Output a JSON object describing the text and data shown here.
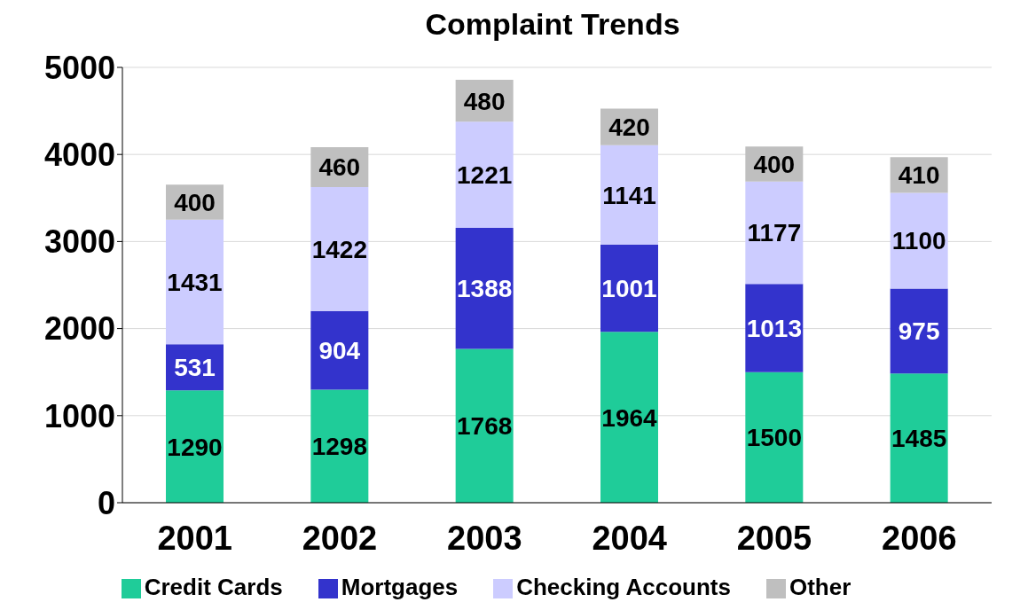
{
  "chart_data": {
    "type": "bar",
    "title": "Complaint Trends",
    "categories": [
      "2001",
      "2002",
      "2003",
      "2004",
      "2005",
      "2006"
    ],
    "series": [
      {
        "name": "Credit Cards",
        "color": "#1fcc99",
        "values": [
          1290,
          1298,
          1768,
          1964,
          1500,
          1485
        ]
      },
      {
        "name": "Mortgages",
        "color": "#3333cc",
        "values": [
          531,
          904,
          1388,
          1001,
          1013,
          975
        ]
      },
      {
        "name": "Checking Accounts",
        "color": "#ccccff",
        "values": [
          1431,
          1422,
          1221,
          1141,
          1177,
          1100
        ]
      },
      {
        "name": "Other",
        "color": "#bfbfbf",
        "values": [
          400,
          460,
          480,
          420,
          400,
          410
        ]
      }
    ],
    "stacked": true,
    "data_labels": true,
    "ylim": [
      0,
      5000
    ],
    "yticks": [
      0,
      1000,
      2000,
      3000,
      4000,
      5000
    ],
    "grid": "y",
    "legend": "bottom"
  }
}
